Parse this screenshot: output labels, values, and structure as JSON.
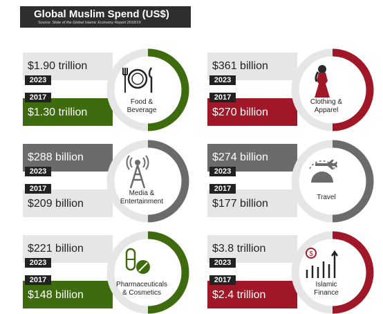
{
  "title": "Global Muslim Spend (US$)",
  "source": "Source: State of the Global Islamic Economy Report 2018/19",
  "colors": {
    "green": "#3d6b0d",
    "red": "#a01828",
    "grey": "#6b6b6b",
    "light": "#e6e6e6",
    "dark": "#222222"
  },
  "chart_data": [
    {
      "type": "table",
      "category": "Food & Beverage",
      "label_lines": [
        "Food &",
        "Beverage"
      ],
      "value_2023": "$1.90 trillion",
      "value_2017": "$1.30 trillion",
      "highlight": "2017",
      "color": "#3d6b0d",
      "icon": "fork-plate-knife-icon"
    },
    {
      "type": "table",
      "category": "Clothing & Apparel",
      "label_lines": [
        "Clothing &",
        "Apparel"
      ],
      "value_2023": "$361 billion",
      "value_2017": "$270 billion",
      "highlight": "2017",
      "color": "#a01828",
      "icon": "hijab-woman-icon"
    },
    {
      "type": "table",
      "category": "Media & Entertainment",
      "label_lines": [
        "Media &",
        "Entertainment"
      ],
      "value_2023": "$288 billion",
      "value_2017": "$209 billion",
      "highlight": "2023",
      "color": "#6b6b6b",
      "icon": "broadcast-tower-icon"
    },
    {
      "type": "table",
      "category": "Travel",
      "label_lines": [
        "Travel"
      ],
      "value_2023": "$274 billion",
      "value_2017": "$177 billion",
      "highlight": "2023",
      "color": "#6b6b6b",
      "icon": "airplane-globe-icon"
    },
    {
      "type": "table",
      "category": "Pharmaceuticals & Cosmetics",
      "label_lines": [
        "Pharmaceuticals",
        "& Cosmetics"
      ],
      "value_2023": "$221 billion",
      "value_2017": "$148 billion",
      "highlight": "2017",
      "color": "#3d6b0d",
      "icon": "pill-capsule-icon"
    },
    {
      "type": "table",
      "category": "Islamic Finance",
      "label_lines": [
        "Islamic",
        "Finance"
      ],
      "value_2023": "$3.8 trillion",
      "value_2017": "$2.4 trillion",
      "highlight": "2017",
      "color": "#a01828",
      "icon": "growth-chart-icon"
    }
  ],
  "year_labels": {
    "y2023": "2023",
    "y2017": "2017"
  }
}
